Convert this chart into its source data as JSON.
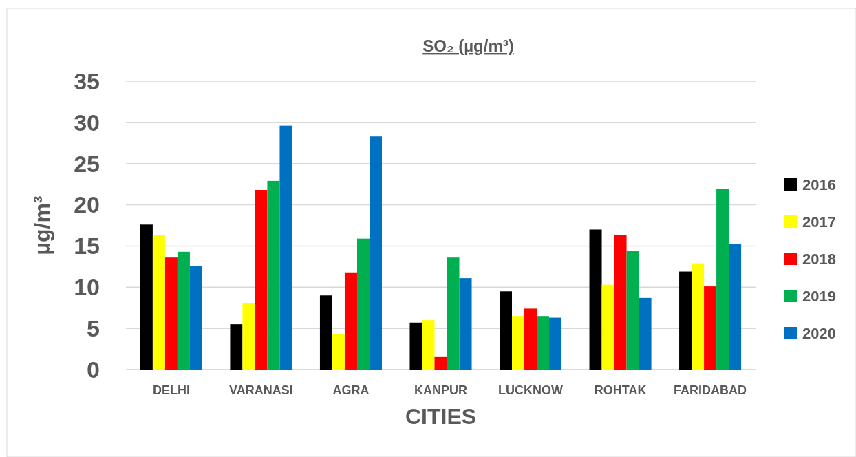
{
  "chart_data": {
    "type": "bar",
    "title": "SO₂ (µg/m³)",
    "xlabel": "CITIES",
    "ylabel": "µg/m³",
    "categories": [
      "DELHI",
      "VARANASI",
      "AGRA",
      "KANPUR",
      "LUCKNOW",
      "ROHTAK",
      "FARIDABAD"
    ],
    "series": [
      {
        "name": "2016",
        "color": "#000000",
        "values": [
          17.6,
          5.5,
          9.0,
          5.7,
          9.5,
          17.0,
          11.9
        ]
      },
      {
        "name": "2017",
        "color": "#ffff00",
        "values": [
          16.3,
          8.1,
          4.3,
          6.0,
          6.5,
          10.3,
          12.9
        ]
      },
      {
        "name": "2018",
        "color": "#ff0000",
        "values": [
          13.6,
          21.8,
          11.8,
          1.6,
          7.4,
          16.3,
          10.1
        ]
      },
      {
        "name": "2019",
        "color": "#00b050",
        "values": [
          14.3,
          22.9,
          15.9,
          13.6,
          6.5,
          14.4,
          21.9
        ]
      },
      {
        "name": "2020",
        "color": "#0070c0",
        "values": [
          12.6,
          29.6,
          28.3,
          11.1,
          6.3,
          8.7,
          15.2
        ]
      }
    ],
    "ylim": [
      0,
      35
    ],
    "yticks": [
      0,
      5,
      10,
      15,
      20,
      25,
      30,
      35
    ],
    "grid": "y",
    "legend": "right"
  }
}
